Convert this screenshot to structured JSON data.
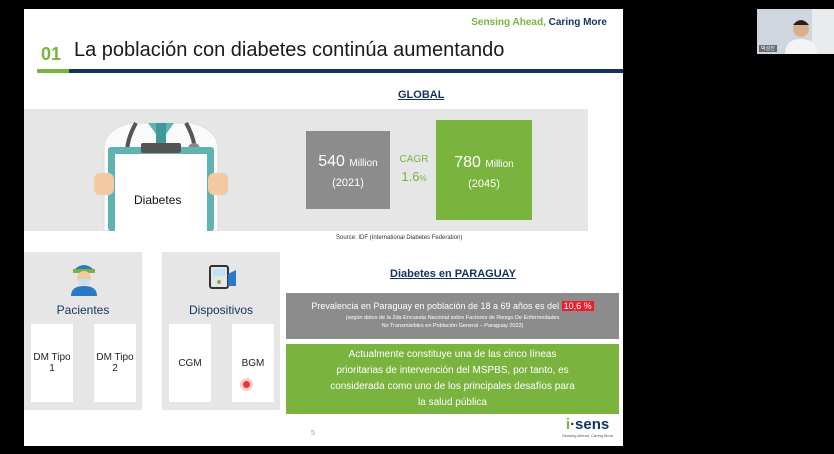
{
  "slide": {
    "tagline_a": "Sensing Ahead,",
    "tagline_b": " Caring More",
    "number": "01",
    "title": "La población con diabetes continúa aumentando",
    "global_label": "GLOBAL",
    "diabetes_label": "Diabetes",
    "stat_2021": {
      "value": "540",
      "unit": "Million",
      "year": "(2021)"
    },
    "cagr": {
      "label": "CAGR",
      "value": "1.6",
      "unit": "%"
    },
    "stat_2045": {
      "value": "780",
      "unit": "Million",
      "year": "(2045)"
    },
    "source": "Source: IDF (International Diabetes Federation)",
    "pacientes": {
      "title": "Pacientes",
      "items": [
        "DM Tipo 1",
        "DM Tipo 2"
      ]
    },
    "dispositivos": {
      "title": "Dispositivos",
      "items": [
        "CGM",
        "BGM"
      ]
    },
    "paraguay": {
      "label": "Diabetes en PARAGUAY",
      "prevalence_text": "Prevalencia en Paraguay en población de 18 a 69 años es del ",
      "prevalence_value": "10,6 %",
      "note_line1": "(según datos de la 2da Encuesta Nacional sobre Factores de Riesgo De Enfermedades",
      "note_line2": "No Transmisibles en Población General – Paraguay 2023)",
      "statement": "Actualmente constituye una de las cinco líneas prioritarias de intervención del MSPBS, por tanto, es considerada como uno de los principales desafíos para la salud pública"
    },
    "page_number": "5",
    "logo_i": "i",
    "logo_rest": "·sens",
    "logo_sub": "Sensing Ahead, Caring More"
  },
  "webcam": {
    "name": "박성진"
  },
  "colors": {
    "green": "#7ab43f",
    "navy": "#14325e",
    "gray": "#8c8c8c",
    "red": "#e8202a"
  }
}
